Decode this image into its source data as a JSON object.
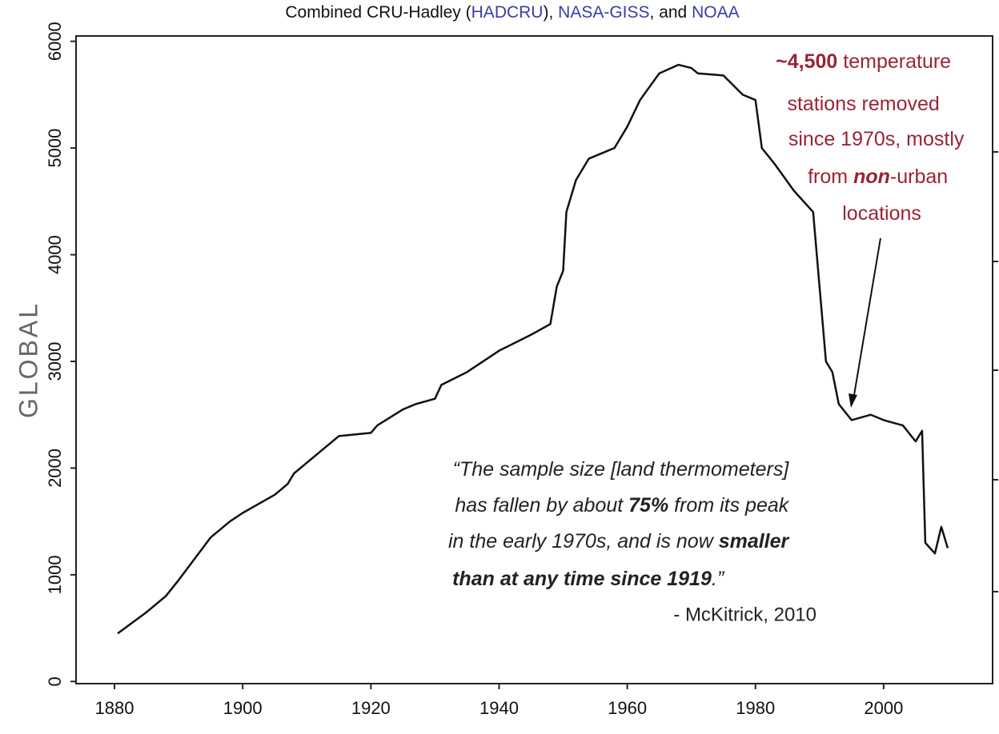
{
  "chart_data": {
    "type": "line",
    "title_parts": [
      "Combined CRU-Hadley (",
      "HADCRU",
      "), ",
      "NASA-GISS",
      ", and ",
      "NOAA"
    ],
    "ylabel": "GLOBAL",
    "color": "#111111",
    "x": [
      1880.5,
      1885,
      1888,
      1890,
      1895,
      1898,
      1900,
      1905,
      1907,
      1908,
      1912,
      1915,
      1920,
      1921,
      1925,
      1927,
      1930,
      1931,
      1935,
      1940,
      1945,
      1948,
      1949,
      1950,
      1950.5,
      1952,
      1954,
      1958,
      1960,
      1962,
      1965,
      1968,
      1970,
      1971,
      1975,
      1978,
      1980,
      1981,
      1983,
      1986,
      1989,
      1990,
      1991,
      1992,
      1993,
      1995,
      1998,
      2000,
      2003,
      2005,
      2006,
      2006.5,
      2008,
      2009,
      2010
    ],
    "values": [
      450,
      650,
      800,
      950,
      1350,
      1500,
      1580,
      1750,
      1850,
      1950,
      2150,
      2300,
      2330,
      2400,
      2550,
      2600,
      2650,
      2780,
      2900,
      3100,
      3250,
      3350,
      3700,
      3850,
      4400,
      4700,
      4900,
      5000,
      5200,
      5450,
      5700,
      5780,
      5750,
      5700,
      5680,
      5500,
      5450,
      5000,
      4850,
      4600,
      4400,
      3700,
      3000,
      2900,
      2600,
      2450,
      2500,
      2450,
      2400,
      2250,
      2350,
      1300,
      1200,
      1450,
      1250
    ],
    "xlim": [
      1874,
      2017
    ],
    "ylim": [
      -20,
      6050
    ],
    "xticks": [
      1880,
      1900,
      1920,
      1940,
      1960,
      1980,
      2000
    ],
    "yticks": [
      0,
      1000,
      2000,
      3000,
      4000,
      5000,
      6000
    ],
    "annotation": [
      [
        "~4,500",
        " temperature"
      ],
      [
        "stations removed"
      ],
      [
        "since 1970s, mostly"
      ],
      [
        "from ",
        "non",
        "-urban"
      ],
      [
        "locations"
      ]
    ],
    "quote": [
      [
        "“The sample size [land thermometers]"
      ],
      [
        "has fallen by about ",
        "75%",
        " from its peak"
      ],
      [
        "in the early 1970s, and is now ",
        "smaller"
      ],
      [
        "than at any time since 1919",
        ".”"
      ]
    ],
    "attribution": "- McKitrick, 2010"
  }
}
